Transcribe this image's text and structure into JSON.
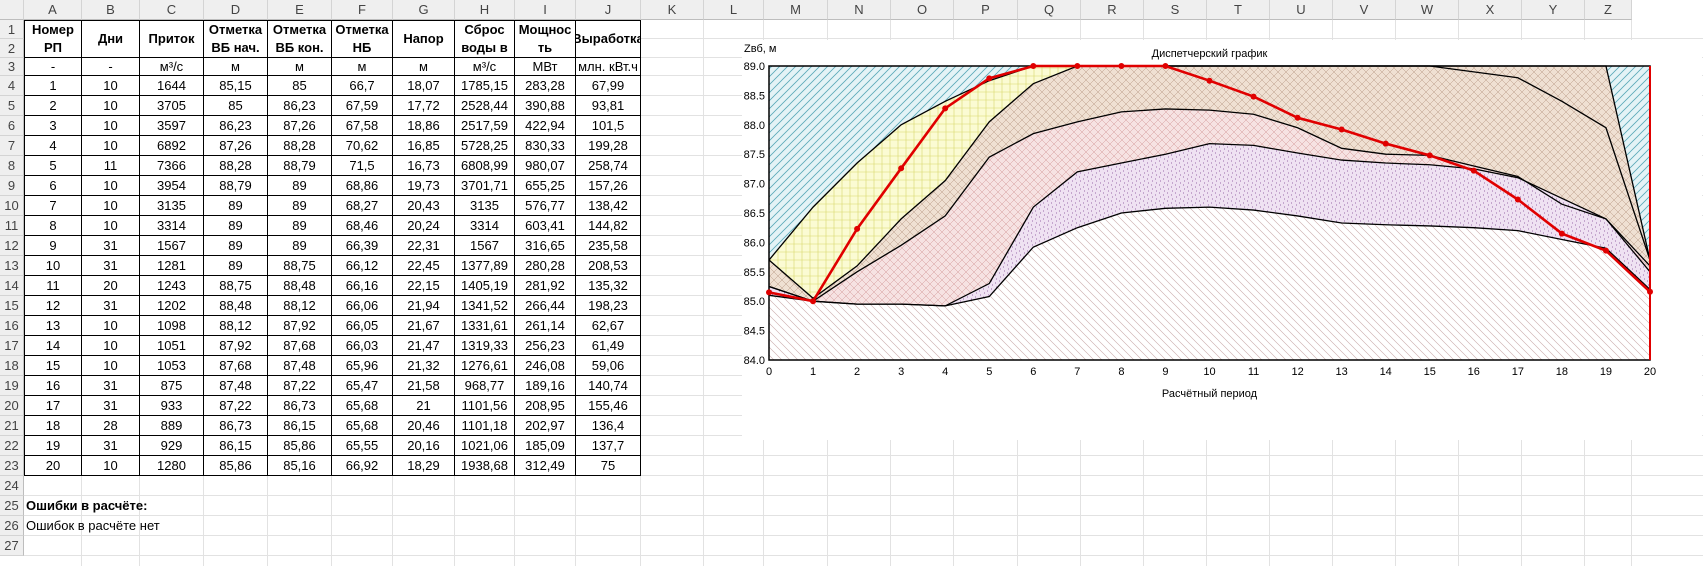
{
  "columns": [
    "A",
    "B",
    "C",
    "D",
    "E",
    "F",
    "G",
    "H",
    "I",
    "J",
    "K",
    "L",
    "M",
    "N",
    "O",
    "P",
    "Q",
    "R",
    "S",
    "T",
    "U",
    "V",
    "W",
    "X",
    "Y",
    "Z"
  ],
  "rows": [
    "1",
    "2",
    "3",
    "4",
    "5",
    "6",
    "7",
    "8",
    "9",
    "10",
    "11",
    "12",
    "13",
    "14",
    "15",
    "16",
    "17",
    "18",
    "19",
    "20",
    "21",
    "22",
    "23",
    "24",
    "25",
    "26",
    "27"
  ],
  "table": {
    "headers": [
      {
        "l1": "Номер",
        "l2": "РП"
      },
      {
        "l1": "Дни",
        "l2": ""
      },
      {
        "l1": "Приток",
        "l2": ""
      },
      {
        "l1": "Отметка",
        "l2": "ВБ нач."
      },
      {
        "l1": "Отметка",
        "l2": "ВБ кон."
      },
      {
        "l1": "Отметка",
        "l2": "НБ"
      },
      {
        "l1": "Напор",
        "l2": ""
      },
      {
        "l1": "Сброс",
        "l2": "воды в"
      },
      {
        "l1": "Мощнос",
        "l2": "ть"
      },
      {
        "l1": "Выработка",
        "l2": ""
      }
    ],
    "units": [
      "-",
      "-",
      "м³/с",
      "м",
      "м",
      "м",
      "м",
      "м³/с",
      "МВт",
      "млн. кВт.ч"
    ],
    "data": [
      [
        "1",
        "10",
        "1644",
        "85,15",
        "85",
        "66,7",
        "18,07",
        "1785,15",
        "283,28",
        "67,99"
      ],
      [
        "2",
        "10",
        "3705",
        "85",
        "86,23",
        "67,59",
        "17,72",
        "2528,44",
        "390,88",
        "93,81"
      ],
      [
        "3",
        "10",
        "3597",
        "86,23",
        "87,26",
        "67,58",
        "18,86",
        "2517,59",
        "422,94",
        "101,5"
      ],
      [
        "4",
        "10",
        "6892",
        "87,26",
        "88,28",
        "70,62",
        "16,85",
        "5728,25",
        "830,33",
        "199,28"
      ],
      [
        "5",
        "11",
        "7366",
        "88,28",
        "88,79",
        "71,5",
        "16,73",
        "6808,99",
        "980,07",
        "258,74"
      ],
      [
        "6",
        "10",
        "3954",
        "88,79",
        "89",
        "68,86",
        "19,73",
        "3701,71",
        "655,25",
        "157,26"
      ],
      [
        "7",
        "10",
        "3135",
        "89",
        "89",
        "68,27",
        "20,43",
        "3135",
        "576,77",
        "138,42"
      ],
      [
        "8",
        "10",
        "3314",
        "89",
        "89",
        "68,46",
        "20,24",
        "3314",
        "603,41",
        "144,82"
      ],
      [
        "9",
        "31",
        "1567",
        "89",
        "89",
        "66,39",
        "22,31",
        "1567",
        "316,65",
        "235,58"
      ],
      [
        "10",
        "31",
        "1281",
        "89",
        "88,75",
        "66,12",
        "22,45",
        "1377,89",
        "280,28",
        "208,53"
      ],
      [
        "11",
        "20",
        "1243",
        "88,75",
        "88,48",
        "66,16",
        "22,15",
        "1405,19",
        "281,92",
        "135,32"
      ],
      [
        "12",
        "31",
        "1202",
        "88,48",
        "88,12",
        "66,06",
        "21,94",
        "1341,52",
        "266,44",
        "198,23"
      ],
      [
        "13",
        "10",
        "1098",
        "88,12",
        "87,92",
        "66,05",
        "21,67",
        "1331,61",
        "261,14",
        "62,67"
      ],
      [
        "14",
        "10",
        "1051",
        "87,92",
        "87,68",
        "66,03",
        "21,47",
        "1319,33",
        "256,23",
        "61,49"
      ],
      [
        "15",
        "10",
        "1053",
        "87,68",
        "87,48",
        "65,96",
        "21,32",
        "1276,61",
        "246,08",
        "59,06"
      ],
      [
        "16",
        "31",
        "875",
        "87,48",
        "87,22",
        "65,47",
        "21,58",
        "968,77",
        "189,16",
        "140,74"
      ],
      [
        "17",
        "31",
        "933",
        "87,22",
        "86,73",
        "65,68",
        "21",
        "1101,56",
        "208,95",
        "155,46"
      ],
      [
        "18",
        "28",
        "889",
        "86,73",
        "86,15",
        "65,68",
        "20,46",
        "1101,18",
        "202,97",
        "136,4"
      ],
      [
        "19",
        "31",
        "929",
        "86,15",
        "85,86",
        "65,55",
        "20,16",
        "1021,06",
        "185,09",
        "137,7"
      ],
      [
        "20",
        "10",
        "1280",
        "85,86",
        "85,16",
        "66,92",
        "18,29",
        "1938,68",
        "312,49",
        "75"
      ]
    ],
    "errors_title": "Ошибки в расчёте:",
    "errors_text": "Ошибок в расчёте нет"
  },
  "chart_data": {
    "type": "area",
    "title": "Диспетчерский график",
    "ylabel": "Zвб, м",
    "xlabel": "Расчётный период",
    "x": [
      0,
      1,
      2,
      3,
      4,
      5,
      6,
      7,
      8,
      9,
      10,
      11,
      12,
      13,
      14,
      15,
      16,
      17,
      18,
      19,
      20
    ],
    "xlim": [
      0,
      20
    ],
    "ylim": [
      84.0,
      89.0
    ],
    "yticks": [
      "89.0",
      "88.5",
      "88.0",
      "87.5",
      "87.0",
      "86.5",
      "86.0",
      "85.5",
      "85.0",
      "84.5",
      "84.0"
    ],
    "series": [
      {
        "values": [
          85.15,
          85.0,
          86.23,
          87.26,
          88.28,
          88.79,
          89.0,
          89.0,
          89.0,
          89.0,
          88.75,
          88.48,
          88.12,
          87.92,
          87.68,
          87.48,
          87.22,
          86.73,
          86.15,
          85.86,
          85.16
        ],
        "color": "#e00000"
      },
      {
        "values": [
          85.7,
          86.6,
          87.35,
          88.0,
          88.4,
          88.75,
          89.0,
          89.0,
          89.0,
          89.0,
          89.0,
          89.0,
          89.0,
          89.0,
          89.0,
          89.0,
          88.9,
          88.8,
          88.4,
          87.95,
          85.7
        ],
        "color": "#000000"
      },
      {
        "values": [
          85.7,
          85.05,
          85.6,
          86.4,
          87.05,
          88.05,
          88.7,
          89.0,
          89.0,
          89.0,
          89.0,
          89.0,
          89.0,
          89.0,
          89.0,
          89.0,
          89.0,
          89.0,
          89.0,
          89.0,
          85.7
        ],
        "color": "#000000"
      },
      {
        "values": [
          85.25,
          85.0,
          85.5,
          85.95,
          86.45,
          87.45,
          87.85,
          88.05,
          88.22,
          88.27,
          88.25,
          88.18,
          87.95,
          87.6,
          87.5,
          87.48,
          87.3,
          87.12,
          86.65,
          86.4,
          85.6
        ],
        "color": "#000000"
      },
      {
        "values": [
          85.25,
          85.0,
          84.95,
          84.95,
          84.92,
          85.3,
          86.6,
          87.2,
          87.35,
          87.5,
          87.68,
          87.65,
          87.52,
          87.4,
          87.35,
          87.32,
          87.25,
          87.1,
          86.75,
          86.4,
          85.5
        ],
        "color": "#000000"
      },
      {
        "values": [
          85.1,
          85.0,
          84.95,
          84.95,
          84.92,
          85.08,
          85.92,
          86.25,
          86.5,
          86.58,
          86.6,
          86.55,
          86.45,
          86.33,
          86.3,
          86.28,
          86.25,
          86.2,
          86.05,
          85.9,
          85.2
        ],
        "color": "#000000"
      }
    ]
  }
}
